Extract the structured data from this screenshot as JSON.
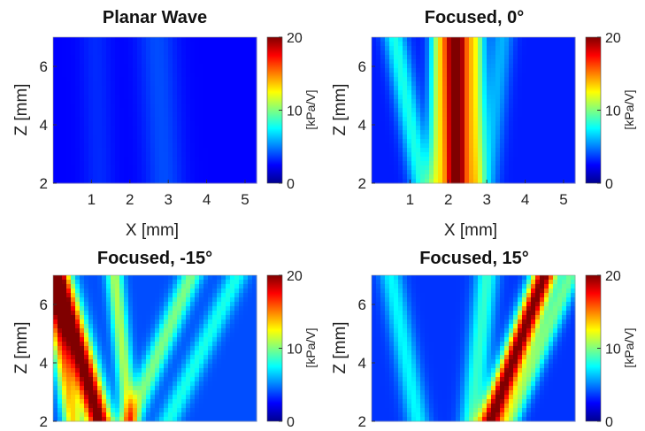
{
  "chart_data": [
    {
      "type": "heatmap",
      "title": "Planar Wave",
      "xlabel": "X [mm]",
      "ylabel": "Z [mm]",
      "xlim": [
        0,
        5.3
      ],
      "ylim": [
        2,
        7
      ],
      "xticks": [
        "1",
        "2",
        "3",
        "4",
        "5"
      ],
      "yticks": [
        "2",
        "4",
        "6"
      ],
      "show_x_axis": true,
      "colorbar": {
        "label": "[kPa/V]",
        "ticks": [
          "0",
          "10",
          "20"
        ],
        "range": [
          0,
          20
        ]
      },
      "colormap": [
        "#00008f",
        "#0060ff",
        "#00dfff",
        "#80ff80",
        "#ffff00",
        "#ff6000",
        "#800000"
      ],
      "background_level": 2.5,
      "beams": [
        {
          "x_at_z2": 2.9,
          "x_at_z7": 2.7,
          "width_mm": 0.5,
          "peak_kpa_per_v": 1.5
        },
        {
          "x_at_z2": 1.2,
          "x_at_z7": 1.1,
          "width_mm": 0.4,
          "peak_kpa_per_v": 0.8
        }
      ]
    },
    {
      "type": "heatmap",
      "title": "Focused, 0°",
      "xlabel": "X [mm]",
      "ylabel": "Z [mm]",
      "xlim": [
        0,
        5.3
      ],
      "ylim": [
        2,
        7
      ],
      "xticks": [
        "1",
        "2",
        "3",
        "4",
        "5"
      ],
      "yticks": [
        "2",
        "4",
        "6"
      ],
      "show_x_axis": true,
      "colorbar": {
        "label": "[kPa/V]",
        "ticks": [
          "0",
          "10",
          "20"
        ],
        "range": [
          0,
          20
        ]
      },
      "background_level": 3,
      "beams": [
        {
          "x_at_z2": 2.2,
          "x_at_z7": 2.2,
          "width_mm": 0.32,
          "peak_kpa_per_v": 19
        },
        {
          "x_at_z2": 2.7,
          "x_at_z7": 2.7,
          "width_mm": 0.25,
          "peak_kpa_per_v": 8
        },
        {
          "x_at_z2": 1.7,
          "x_at_z7": 1.75,
          "width_mm": 0.25,
          "peak_kpa_per_v": 7
        },
        {
          "x_at_z2": 1.3,
          "x_at_z7": 0.6,
          "width_mm": 0.3,
          "peak_kpa_per_v": 5
        },
        {
          "x_at_z2": 3.0,
          "x_at_z7": 3.4,
          "width_mm": 0.3,
          "peak_kpa_per_v": 3
        }
      ]
    },
    {
      "type": "heatmap",
      "title": "Focused, -15°",
      "xlabel": "",
      "ylabel": "Z [mm]",
      "xlim": [
        0,
        5.3
      ],
      "ylim": [
        2,
        7
      ],
      "xticks": [],
      "yticks": [
        "2",
        "4",
        "6"
      ],
      "show_x_axis": false,
      "colorbar": {
        "label": "[kPa/V]",
        "ticks": [
          "0",
          "10",
          "20"
        ],
        "range": [
          0,
          20
        ]
      },
      "background_level": 4,
      "beams": [
        {
          "x_at_z2": 1.2,
          "x_at_z7": 0.1,
          "width_mm": 0.35,
          "peak_kpa_per_v": 17
        },
        {
          "x_at_z2": 0.5,
          "x_at_z7": -0.1,
          "width_mm": 0.25,
          "peak_kpa_per_v": 9
        },
        {
          "x_at_z2": 2.0,
          "x_at_z7": 1.6,
          "width_mm": 0.22,
          "peak_kpa_per_v": 7
        },
        {
          "x_at_z2": 2.0,
          "x_at_z7": 3.6,
          "width_mm": 0.3,
          "peak_kpa_per_v": 6
        },
        {
          "x_at_z2": 3.0,
          "x_at_z7": 4.8,
          "width_mm": 0.3,
          "peak_kpa_per_v": 4
        }
      ]
    },
    {
      "type": "heatmap",
      "title": "Focused, 15°",
      "xlabel": "",
      "ylabel": "Z [mm]",
      "xlim": [
        0,
        5.3
      ],
      "ylim": [
        2,
        7
      ],
      "xticks": [],
      "yticks": [
        "2",
        "4",
        "6"
      ],
      "show_x_axis": false,
      "colorbar": {
        "label": "[kPa/V]",
        "ticks": [
          "0",
          "10",
          "20"
        ],
        "range": [
          0,
          20
        ]
      },
      "background_level": 3.5,
      "beams": [
        {
          "x_at_z2": 3.1,
          "x_at_z7": 4.5,
          "width_mm": 0.32,
          "peak_kpa_per_v": 17
        },
        {
          "x_at_z2": 3.6,
          "x_at_z7": 5.2,
          "width_mm": 0.28,
          "peak_kpa_per_v": 6
        },
        {
          "x_at_z2": 2.6,
          "x_at_z7": 3.0,
          "width_mm": 0.3,
          "peak_kpa_per_v": 5
        },
        {
          "x_at_z2": 1.2,
          "x_at_z7": 0.5,
          "width_mm": 0.3,
          "peak_kpa_per_v": 4
        }
      ]
    }
  ]
}
